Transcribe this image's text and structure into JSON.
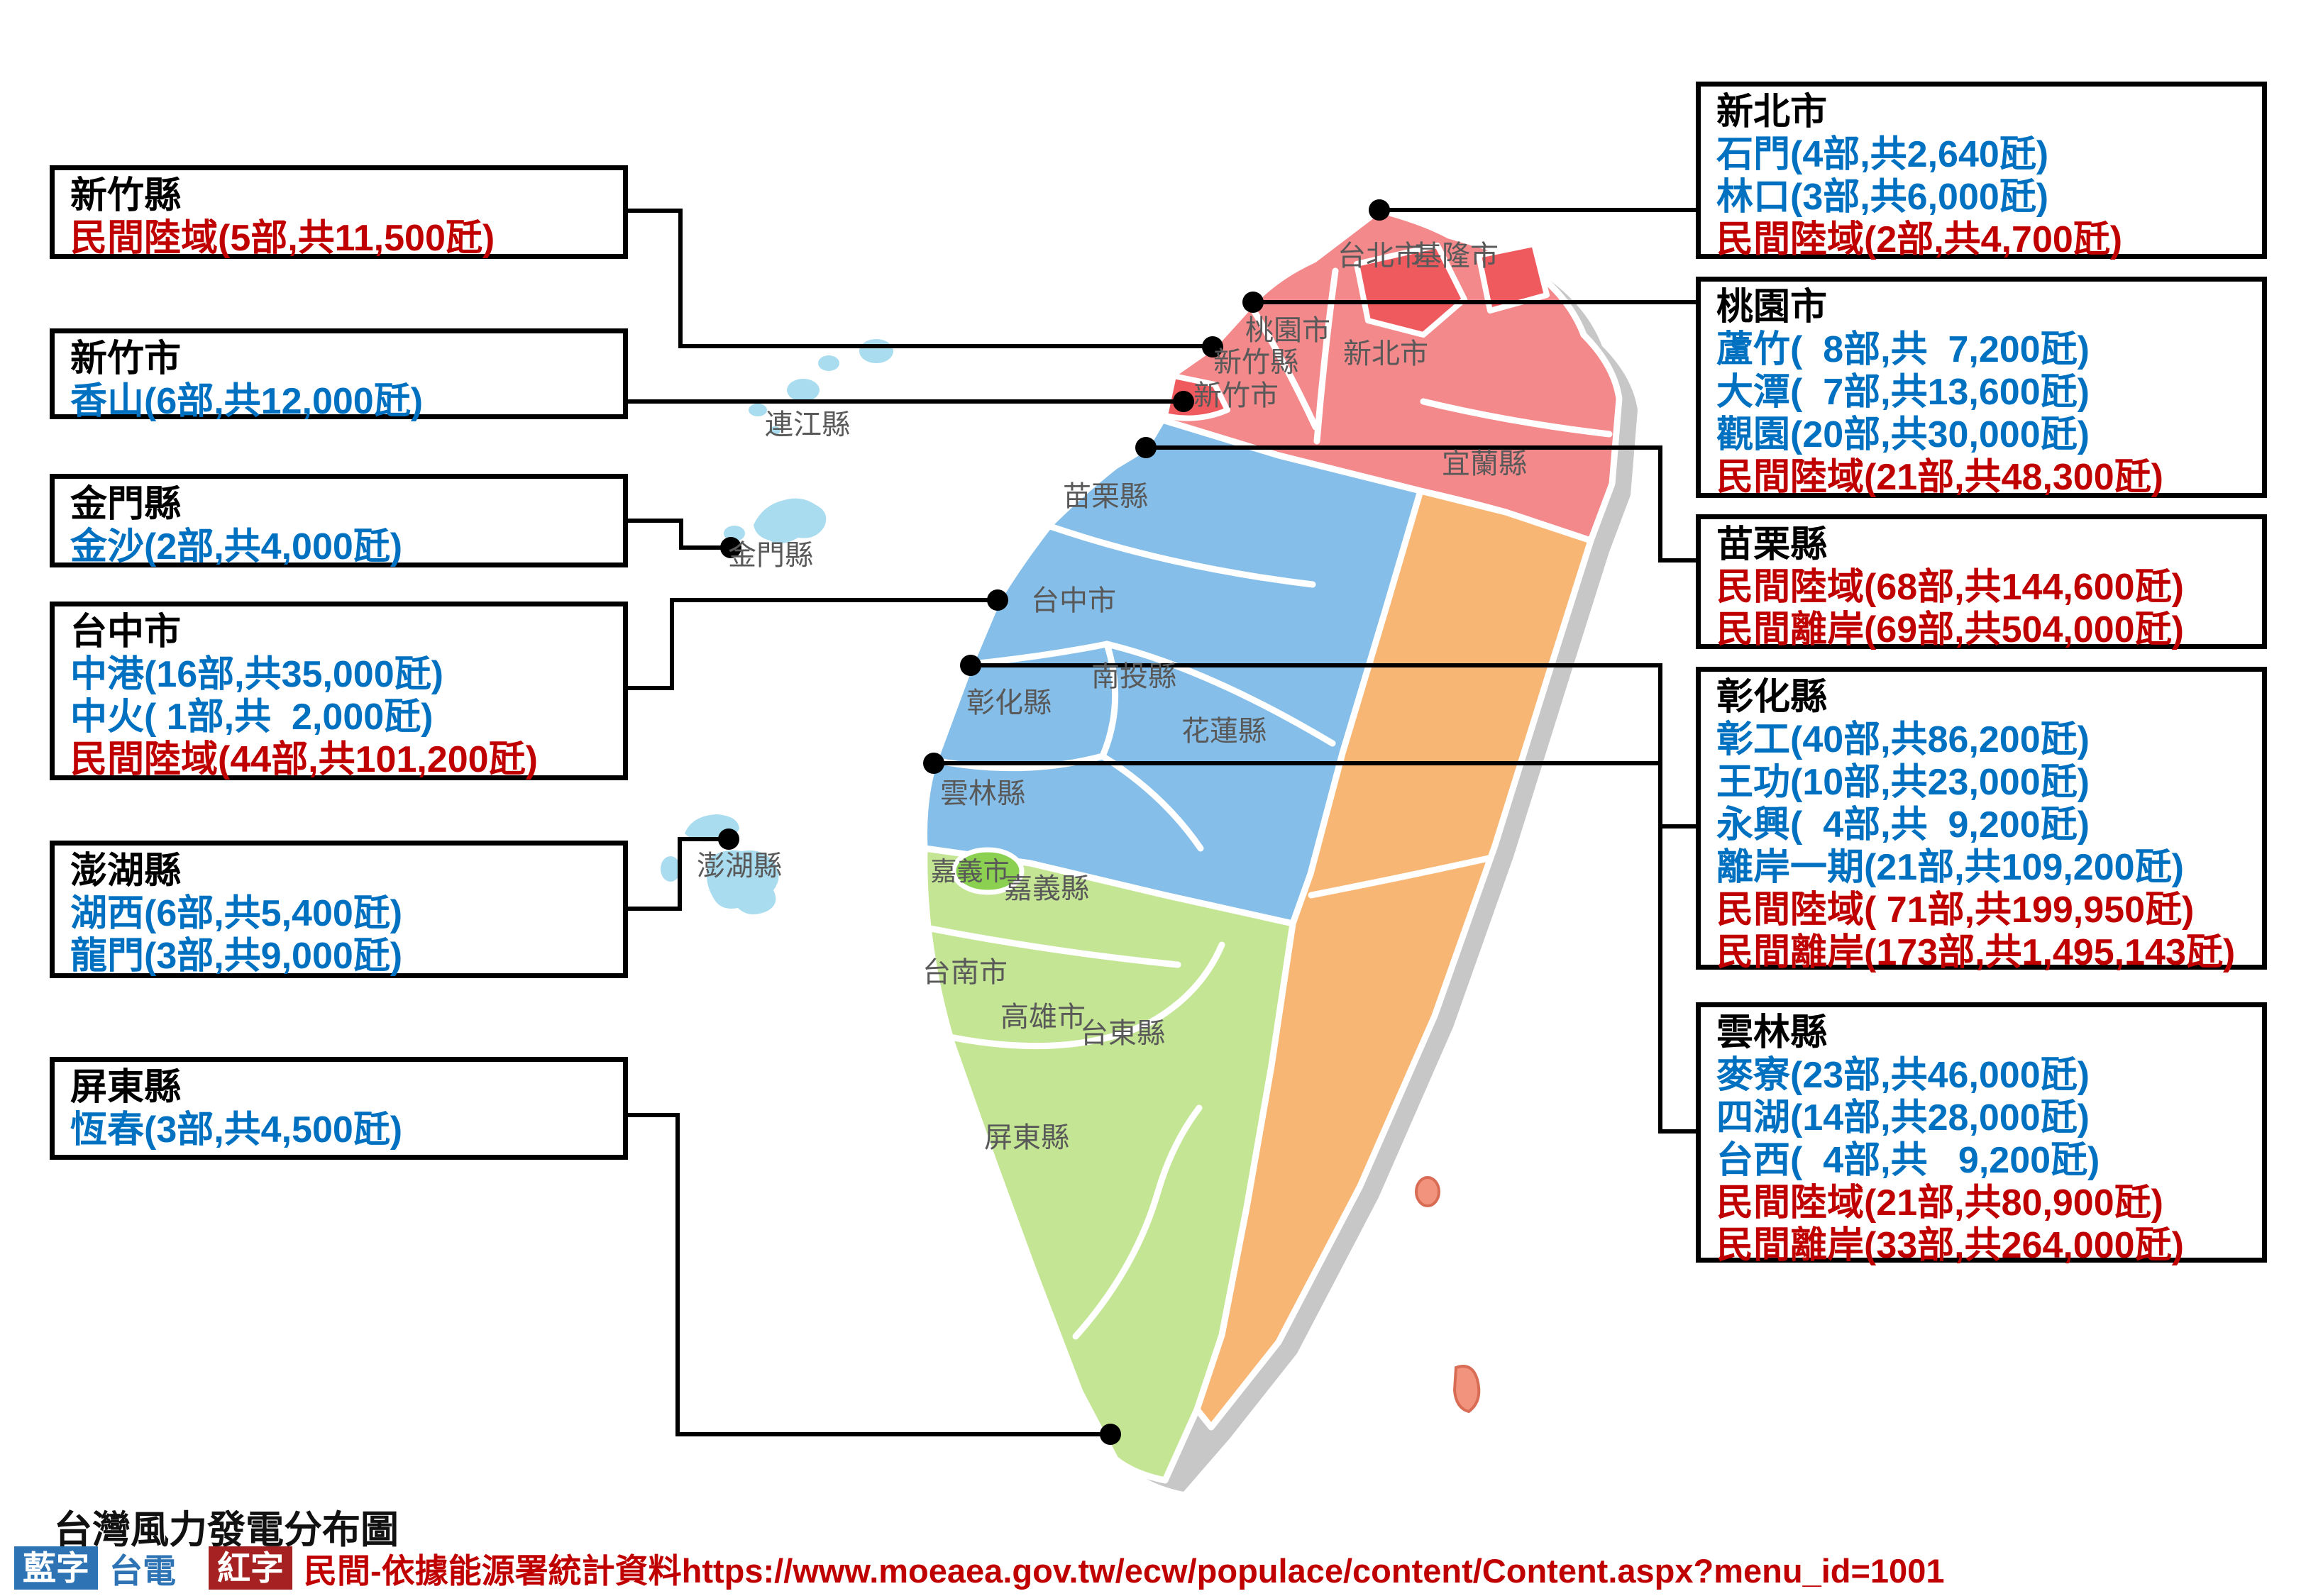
{
  "map_title": "台灣風力發電分布圖",
  "legend": {
    "blue_chip": "藍字",
    "blue_label": "台電",
    "red_chip": "紅字",
    "red_label": "民間-依據能源署統計資料https://www.moeaea.gov.tw/ecw/populace/content/Content.aspx?menu_id=1001"
  },
  "colors": {
    "taipower_text_blue": "#0070C0",
    "private_text_red": "#C00000",
    "region_north_red": "#F4898B",
    "region_city_dark_red": "#EF5A5F",
    "region_central_blue": "#85BFE9",
    "region_east_orange": "#F8B674",
    "region_south_green": "#C4E594",
    "region_chiayi_city_green": "#8BD051",
    "island_light_blue": "#A8DCEE",
    "shadow_gray": "#C7C7C7",
    "map_label_gray": "#595959",
    "legend_blue_chip": "#2E74B5",
    "legend_red_chip": "#A62121"
  },
  "boxes": [
    {
      "title": "新竹縣",
      "lines": [
        {
          "text": "民間陸域(5部,共11,500瓩)",
          "color": "red"
        }
      ]
    },
    {
      "title": "新竹市",
      "lines": [
        {
          "text": "香山(6部,共12,000瓩)",
          "color": "blue"
        }
      ]
    },
    {
      "title": "金門縣",
      "lines": [
        {
          "text": "金沙(2部,共4,000瓩)",
          "color": "blue"
        }
      ]
    },
    {
      "title": "台中市",
      "lines": [
        {
          "text": "中港(16部,共35,000瓩)",
          "color": "blue"
        },
        {
          "text": "中火( 1部,共  2,000瓩)",
          "color": "blue"
        },
        {
          "text": "民間陸域(44部,共101,200瓩)",
          "color": "red"
        }
      ]
    },
    {
      "title": "澎湖縣",
      "lines": [
        {
          "text": "湖西(6部,共5,400瓩)",
          "color": "blue"
        },
        {
          "text": "龍門(3部,共9,000瓩)",
          "color": "blue"
        }
      ]
    },
    {
      "title": "屏東縣",
      "lines": [
        {
          "text": "恆春(3部,共4,500瓩)",
          "color": "blue"
        }
      ]
    },
    {
      "title": "新北市",
      "lines": [
        {
          "text": "石門(4部,共2,640瓩)",
          "color": "blue"
        },
        {
          "text": "林口(3部,共6,000瓩)",
          "color": "blue"
        },
        {
          "text": "民間陸域(2部,共4,700瓩)",
          "color": "red"
        }
      ]
    },
    {
      "title": "桃園市",
      "lines": [
        {
          "text": "蘆竹(  8部,共  7,200瓩)",
          "color": "blue"
        },
        {
          "text": "大潭(  7部,共13,600瓩)",
          "color": "blue"
        },
        {
          "text": "觀園(20部,共30,000瓩)",
          "color": "blue"
        },
        {
          "text": "民間陸域(21部,共48,300瓩)",
          "color": "red"
        }
      ]
    },
    {
      "title": "苗栗縣",
      "lines": [
        {
          "text": "民間陸域(68部,共144,600瓩)",
          "color": "red"
        },
        {
          "text": "民間離岸(69部,共504,000瓩)",
          "color": "red"
        }
      ]
    },
    {
      "title": "彰化縣",
      "lines": [
        {
          "text": "彰工(40部,共86,200瓩)",
          "color": "blue"
        },
        {
          "text": "王功(10部,共23,000瓩)",
          "color": "blue"
        },
        {
          "text": "永興(  4部,共  9,200瓩)",
          "color": "blue"
        },
        {
          "text": "離岸一期(21部,共109,200瓩)",
          "color": "blue"
        },
        {
          "text": "民間陸域( 71部,共199,950瓩)",
          "color": "red"
        },
        {
          "text": "民間離岸(173部,共1,495,143瓩)",
          "color": "red"
        }
      ]
    },
    {
      "title": "雲林縣",
      "lines": [
        {
          "text": "麥寮(23部,共46,000瓩)",
          "color": "blue"
        },
        {
          "text": "四湖(14部,共28,000瓩)",
          "color": "blue"
        },
        {
          "text": "台西(  4部,共   9,200瓩)",
          "color": "blue"
        },
        {
          "text": "民間陸域(21部,共80,900瓩)",
          "color": "red"
        },
        {
          "text": "民間離岸(33部,共264,000瓩)",
          "color": "red"
        }
      ]
    }
  ],
  "map_labels": [
    "台北市",
    "基隆市",
    "桃園市",
    "新北市",
    "宜蘭縣",
    "新竹縣",
    "新竹市",
    "苗栗縣",
    "台中市",
    "南投縣",
    "彰化縣",
    "雲林縣",
    "花蓮縣",
    "嘉義市",
    "嘉義縣",
    "台南市",
    "高雄市",
    "台東縣",
    "屏東縣",
    "連江縣",
    "金門縣",
    "澎湖縣"
  ]
}
